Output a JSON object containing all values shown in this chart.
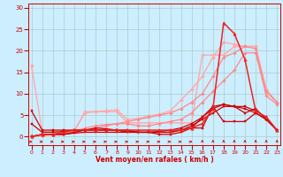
{
  "title": "",
  "xlabel": "Vent moyen/en rafales ( km/h )",
  "bg_color": "#cceeff",
  "grid_color": "#aacccc",
  "x_ticks": [
    0,
    1,
    2,
    3,
    4,
    5,
    6,
    7,
    8,
    9,
    10,
    11,
    12,
    13,
    14,
    15,
    16,
    17,
    18,
    19,
    20,
    21,
    22,
    23
  ],
  "ylim": [
    -2,
    31
  ],
  "xlim": [
    -0.3,
    23.3
  ],
  "yticks": [
    0,
    5,
    10,
    15,
    20,
    25,
    30
  ],
  "lines": [
    {
      "x": [
        0,
        1,
        2,
        3,
        4,
        5,
        6,
        7,
        8,
        9,
        10,
        11,
        12,
        13,
        14,
        15,
        16,
        17,
        18,
        19,
        20,
        21,
        22,
        23
      ],
      "y": [
        16.5,
        1.2,
        1.2,
        1.2,
        1.2,
        5.8,
        5.8,
        5.8,
        5.8,
        3.2,
        3.2,
        3.2,
        3.2,
        3.2,
        3.2,
        3.2,
        19.0,
        19.0,
        19.0,
        21.0,
        21.0,
        21.0,
        10.5,
        8.0
      ],
      "color": "#ffaaaa",
      "lw": 1.0,
      "marker": "D",
      "ms": 2.0
    },
    {
      "x": [
        0,
        1,
        2,
        3,
        4,
        5,
        6,
        7,
        8,
        9,
        10,
        11,
        12,
        13,
        14,
        15,
        16,
        17,
        18,
        19,
        20,
        21,
        22,
        23
      ],
      "y": [
        0,
        0.3,
        0.5,
        0.8,
        1.2,
        5.5,
        5.8,
        6.0,
        6.2,
        4.0,
        4.2,
        4.8,
        5.2,
        6.0,
        8.5,
        11.0,
        14.0,
        18.5,
        22.0,
        21.5,
        21.0,
        21.0,
        11.0,
        8.0
      ],
      "color": "#ffaaaa",
      "lw": 1.0,
      "marker": "D",
      "ms": 2.0
    },
    {
      "x": [
        0,
        1,
        2,
        3,
        4,
        5,
        6,
        7,
        8,
        9,
        10,
        11,
        12,
        13,
        14,
        15,
        16,
        17,
        18,
        19,
        20,
        21,
        22,
        23
      ],
      "y": [
        0,
        0.3,
        0.5,
        0.8,
        1.0,
        1.5,
        2.0,
        2.5,
        3.0,
        3.5,
        4.0,
        4.5,
        5.0,
        5.5,
        6.5,
        8.0,
        10.0,
        14.0,
        18.5,
        19.5,
        21.0,
        20.5,
        10.5,
        8.0
      ],
      "color": "#ff8888",
      "lw": 0.9,
      "marker": "D",
      "ms": 1.8
    },
    {
      "x": [
        0,
        1,
        2,
        3,
        4,
        5,
        6,
        7,
        8,
        9,
        10,
        11,
        12,
        13,
        14,
        15,
        16,
        17,
        18,
        19,
        20,
        21,
        22,
        23
      ],
      "y": [
        0,
        0.3,
        0.5,
        0.8,
        1.0,
        2.0,
        2.5,
        2.8,
        3.0,
        3.0,
        2.5,
        2.5,
        3.0,
        3.5,
        4.0,
        5.5,
        8.0,
        10.5,
        13.0,
        15.5,
        19.5,
        19.5,
        9.5,
        7.5
      ],
      "color": "#ff8888",
      "lw": 0.9,
      "marker": "D",
      "ms": 1.8
    },
    {
      "x": [
        0,
        1,
        2,
        3,
        4,
        5,
        6,
        7,
        8,
        9,
        10,
        11,
        12,
        13,
        14,
        15,
        16,
        17,
        18,
        19,
        20,
        21,
        22,
        23
      ],
      "y": [
        6.0,
        1.5,
        1.5,
        1.5,
        1.5,
        1.5,
        1.5,
        1.5,
        1.5,
        1.0,
        1.0,
        1.0,
        0.5,
        0.5,
        1.0,
        2.0,
        4.5,
        7.0,
        3.5,
        3.5,
        3.5,
        5.5,
        4.0,
        1.5
      ],
      "color": "#cc0000",
      "lw": 0.9,
      "marker": "s",
      "ms": 2.0
    },
    {
      "x": [
        0,
        1,
        2,
        3,
        4,
        5,
        6,
        7,
        8,
        9,
        10,
        11,
        12,
        13,
        14,
        15,
        16,
        17,
        18,
        19,
        20,
        21,
        22,
        23
      ],
      "y": [
        3.0,
        1.0,
        1.0,
        1.2,
        1.5,
        1.5,
        1.5,
        1.5,
        1.5,
        1.5,
        1.0,
        1.0,
        1.0,
        1.0,
        1.5,
        2.0,
        2.0,
        7.0,
        7.5,
        7.0,
        7.0,
        6.0,
        4.5,
        1.5
      ],
      "color": "#cc0000",
      "lw": 0.9,
      "marker": "s",
      "ms": 2.0
    },
    {
      "x": [
        0,
        1,
        2,
        3,
        4,
        5,
        6,
        7,
        8,
        9,
        10,
        11,
        12,
        13,
        14,
        15,
        16,
        17,
        18,
        19,
        20,
        21,
        22,
        23
      ],
      "y": [
        0,
        0.5,
        0.5,
        0.5,
        1.0,
        1.5,
        2.0,
        1.8,
        1.5,
        1.2,
        1.0,
        1.0,
        1.2,
        1.5,
        2.0,
        3.0,
        4.5,
        6.5,
        7.5,
        7.0,
        6.5,
        5.5,
        4.0,
        1.5
      ],
      "color": "#cc0000",
      "lw": 0.9,
      "marker": "s",
      "ms": 2.0
    },
    {
      "x": [
        0,
        1,
        2,
        3,
        4,
        5,
        6,
        7,
        8,
        9,
        10,
        11,
        12,
        13,
        14,
        15,
        16,
        17,
        18,
        19,
        20,
        21,
        22,
        23
      ],
      "y": [
        0,
        0.5,
        0.5,
        0.5,
        0.8,
        1.0,
        1.0,
        1.0,
        1.0,
        1.0,
        1.0,
        1.0,
        1.0,
        1.0,
        1.5,
        2.5,
        4.0,
        5.5,
        7.0,
        7.0,
        5.5,
        6.5,
        4.0,
        1.5
      ],
      "color": "#cc0000",
      "lw": 0.9,
      "marker": "s",
      "ms": 2.0
    },
    {
      "x": [
        0,
        1,
        2,
        3,
        4,
        5,
        6,
        7,
        8,
        9,
        10,
        11,
        12,
        13,
        14,
        15,
        16,
        17,
        18,
        19,
        20,
        21,
        22,
        23
      ],
      "y": [
        0,
        0.5,
        0.5,
        1.0,
        1.5,
        1.5,
        1.5,
        1.5,
        1.5,
        1.5,
        1.5,
        1.5,
        1.5,
        1.5,
        1.5,
        2.0,
        3.0,
        6.5,
        26.5,
        24.0,
        18.0,
        6.0,
        4.5,
        1.5
      ],
      "color": "#ee2222",
      "lw": 1.1,
      "marker": "^",
      "ms": 2.5
    }
  ],
  "wind_arrow_horizontal_upto": 15,
  "wind_color": "#cc0000"
}
